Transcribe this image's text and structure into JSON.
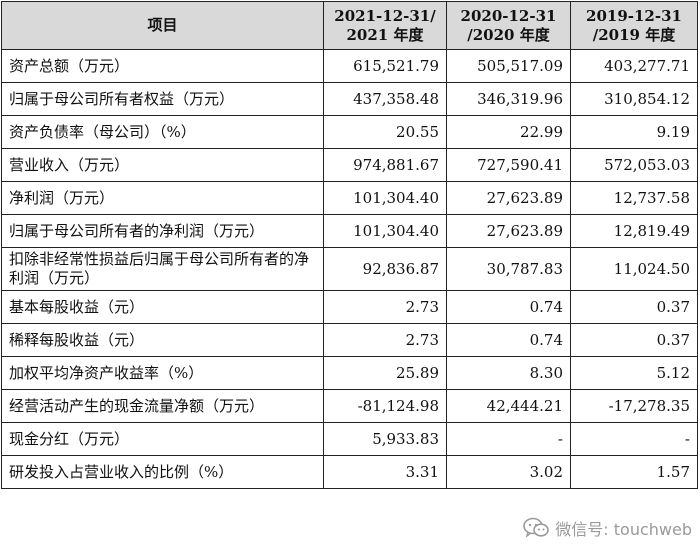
{
  "table": {
    "header": [
      "项目",
      "2021-12-31/\n2021 年度",
      "2020-12-31\n/2020 年度",
      "2019-12-31\n/2019 年度"
    ],
    "rows": [
      {
        "label": "资产总额（万元）",
        "v2021": "615,521.79",
        "v2020": "505,517.09",
        "v2019": "403,277.71"
      },
      {
        "label": "归属于母公司所有者权益（万元）",
        "v2021": "437,358.48",
        "v2020": "346,319.96",
        "v2019": "310,854.12"
      },
      {
        "label": "资产负债率（母公司）（%）",
        "v2021": "20.55",
        "v2020": "22.99",
        "v2019": "9.19"
      },
      {
        "label": "营业收入（万元）",
        "v2021": "974,881.67",
        "v2020": "727,590.41",
        "v2019": "572,053.03"
      },
      {
        "label": "净利润（万元）",
        "v2021": "101,304.40",
        "v2020": "27,623.89",
        "v2019": "12,737.58"
      },
      {
        "label": "归属于母公司所有者的净利润（万元）",
        "v2021": "101,304.40",
        "v2020": "27,623.89",
        "v2019": "12,819.49"
      },
      {
        "label": "扣除非经常性损益后归属于母公司所有者的净利润（万元）",
        "v2021": "92,836.87",
        "v2020": "30,787.83",
        "v2019": "11,024.50"
      },
      {
        "label": "基本每股收益（元）",
        "v2021": "2.73",
        "v2020": "0.74",
        "v2019": "0.37"
      },
      {
        "label": "稀释每股收益（元）",
        "v2021": "2.73",
        "v2020": "0.74",
        "v2019": "0.37"
      },
      {
        "label": "加权平均净资产收益率（%）",
        "v2021": "25.89",
        "v2020": "8.30",
        "v2019": "5.12"
      },
      {
        "label": "经营活动产生的现金流量净额（万元）",
        "v2021": "-81,124.98",
        "v2020": "42,444.21",
        "v2019": "-17,278.35"
      },
      {
        "label": "现金分红（万元）",
        "v2021": "5,933.83",
        "v2020": "-",
        "v2019": "-"
      },
      {
        "label": "研发投入占营业收入的比例（%）",
        "v2021": "3.31",
        "v2020": "3.02",
        "v2019": "1.57"
      }
    ]
  },
  "watermark": {
    "text": "微信号: touchweb",
    "icon": "wechat-icon",
    "color": "#9a9a9a"
  }
}
